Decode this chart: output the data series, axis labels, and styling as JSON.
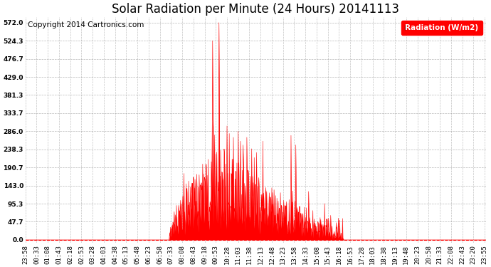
{
  "title": "Solar Radiation per Minute (24 Hours) 20141113",
  "copyright": "Copyright 2014 Cartronics.com",
  "legend_label": "Radiation (W/m2)",
  "yticks": [
    0.0,
    47.7,
    95.3,
    143.0,
    190.7,
    238.3,
    286.0,
    333.7,
    381.3,
    429.0,
    476.7,
    524.3,
    572.0
  ],
  "ymax": 572.0,
  "fill_color": "#FF0000",
  "line_color": "#FF0000",
  "background_color": "#FFFFFF",
  "grid_color": "#888888",
  "title_fontsize": 12,
  "tick_fontsize": 6.5,
  "copyright_fontsize": 7.5,
  "legend_fontsize": 7.5,
  "tick_labels": [
    "23:58",
    "00:33",
    "01:08",
    "01:43",
    "02:18",
    "02:53",
    "03:28",
    "04:03",
    "04:38",
    "05:13",
    "05:48",
    "06:23",
    "06:58",
    "07:33",
    "08:08",
    "08:43",
    "09:18",
    "09:53",
    "10:28",
    "11:03",
    "11:38",
    "12:13",
    "12:48",
    "13:23",
    "13:58",
    "14:33",
    "15:08",
    "15:43",
    "16:18",
    "16:53",
    "17:28",
    "18:03",
    "18:38",
    "19:13",
    "19:48",
    "20:23",
    "20:58",
    "21:33",
    "22:08",
    "22:43",
    "23:20",
    "23:55"
  ]
}
